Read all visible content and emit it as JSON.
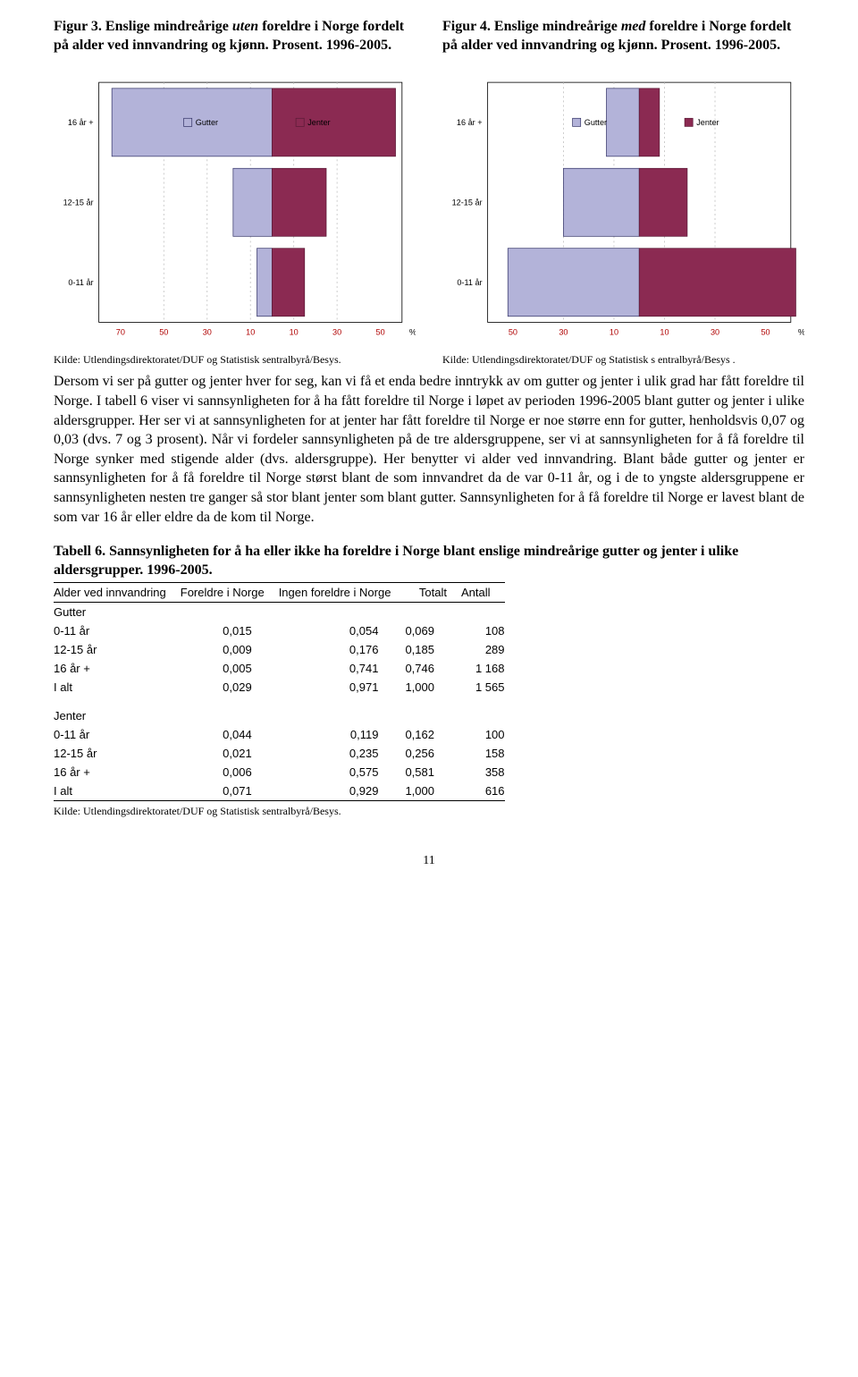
{
  "figures": {
    "left": {
      "title_prefix": "Figur 3. Enslige mindreårige ",
      "title_em": "uten",
      "title_suffix": " foreldre i Norge fordelt på alder ved innvandring og kjønn. Prosent. 1996-2005.",
      "legend_gutter": "Gutter",
      "legend_jenter": "Jenter",
      "categories": [
        "16 år +",
        "12-15 år",
        "0-11 år"
      ],
      "gutter_values": [
        -74,
        -18,
        -7
      ],
      "jenter_values": [
        57,
        25,
        15
      ],
      "x_ticks": [
        "70",
        "50",
        "30",
        "10",
        "10",
        "30",
        "50"
      ],
      "x_unit": "%",
      "gutter_fill": "#b3b3d9",
      "gutter_stroke": "#333366",
      "jenter_fill": "#8b2a52",
      "jenter_stroke": "#5a1a36",
      "grid_color": "#c0c0c0",
      "axis_color": "#000000",
      "source": "Kilde: Utlendingsdirektoratet/DUF og Statistisk sentralbyrå/Besys."
    },
    "right": {
      "title_prefix": "Figur 4. Enslige mindreårige ",
      "title_em": "med",
      "title_suffix": " foreldre i Norge fordelt på alder ved innvandring og kjønn. Prosent. 1996-2005.",
      "legend_gutter": "Gutter",
      "legend_jenter": "Jenter",
      "categories": [
        "16 år +",
        "12-15 år",
        "0-11 år"
      ],
      "gutter_values": [
        -13,
        -30,
        -52
      ],
      "jenter_values": [
        8,
        19,
        62
      ],
      "x_ticks": [
        "50",
        "30",
        "10",
        "10",
        "30",
        "50"
      ],
      "x_unit": "%",
      "gutter_fill": "#b3b3d9",
      "gutter_stroke": "#333366",
      "jenter_fill": "#8b2a52",
      "jenter_stroke": "#5a1a36",
      "grid_color": "#c0c0c0",
      "axis_color": "#000000",
      "source": "Kilde: Utlendingsdirektoratet/DUF og Statistisk s entralbyrå/Besys ."
    }
  },
  "paragraph": "Dersom vi ser på gutter og jenter hver for seg, kan vi få et enda bedre inntrykk av om gutter og jenter i ulik grad har fått foreldre til Norge. I tabell 6 viser vi sannsynligheten for å ha fått foreldre til Norge i løpet av perioden 1996-2005 blant gutter og jenter i ulike aldersgrupper. Her ser vi at sannsynligheten for at jenter har fått foreldre til Norge er noe større enn for gutter, henholdsvis 0,07 og 0,03 (dvs. 7 og 3 prosent). Når vi fordeler sannsynligheten på de tre aldersgruppene, ser vi at sannsynligheten for å få foreldre til Norge synker med stigende alder (dvs. aldersgruppe). Her benytter vi alder ved innvandring. Blant både gutter og jenter er sannsynligheten for å få foreldre til Norge størst blant de som innvandret da de var 0-11 år, og i de to yngste aldersgruppene er sannsynligheten nesten tre ganger så stor blant jenter som blant gutter. Sannsynligheten for å få foreldre til Norge er lavest blant de som var 16 år eller eldre da de kom til Norge.",
  "table": {
    "title": "Tabell 6. Sannsynligheten for å ha eller ikke ha foreldre i Norge blant enslige mindreårige gutter og jenter i ulike aldersgrupper. 1996-2005.",
    "columns": [
      "Alder ved innvandring",
      "Foreldre i Norge",
      "Ingen foreldre i Norge",
      "Totalt",
      "Antall"
    ],
    "groups": [
      {
        "label": "Gutter",
        "rows": [
          [
            "0-11 år",
            "0,015",
            "0,054",
            "0,069",
            "108"
          ],
          [
            "12-15 år",
            "0,009",
            "0,176",
            "0,185",
            "289"
          ],
          [
            "16 år +",
            "0,005",
            "0,741",
            "0,746",
            "1 168"
          ],
          [
            "I alt",
            "0,029",
            "0,971",
            "1,000",
            "1 565"
          ]
        ]
      },
      {
        "label": "Jenter",
        "rows": [
          [
            "0-11 år",
            "0,044",
            "0,119",
            "0,162",
            "100"
          ],
          [
            "12-15 år",
            "0,021",
            "0,235",
            "0,256",
            "158"
          ],
          [
            "16 år +",
            "0,006",
            "0,575",
            "0,581",
            "358"
          ],
          [
            "I alt",
            "0,071",
            "0,929",
            "1,000",
            "616"
          ]
        ]
      }
    ],
    "source": "Kilde: Utlendingsdirektoratet/DUF og Statistisk sentralbyrå/Besys."
  },
  "page_number": "11"
}
